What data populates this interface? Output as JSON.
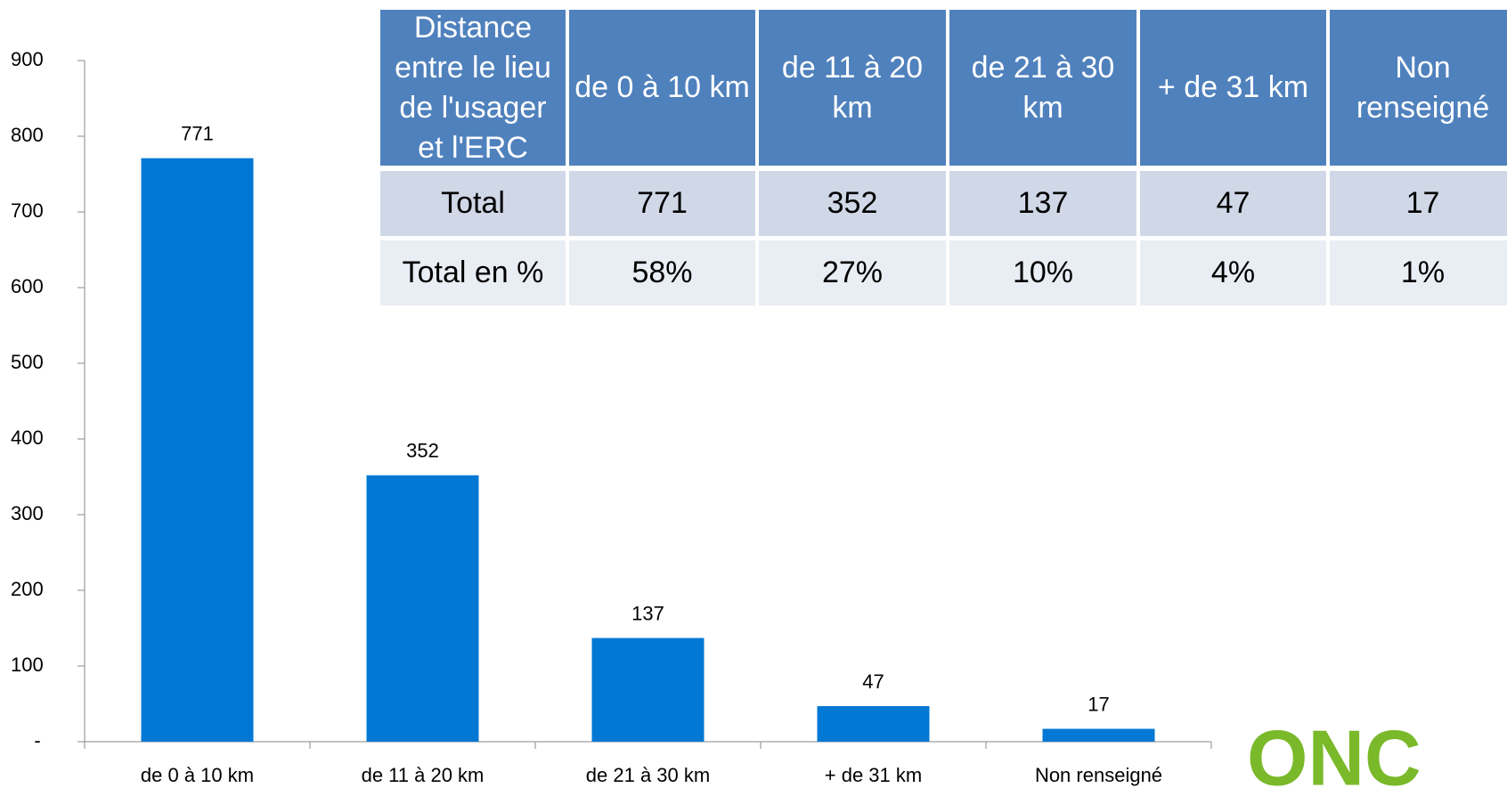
{
  "chart_data": {
    "type": "bar",
    "categories": [
      "de 0 à 10 km",
      "de 11 à 20 km",
      "de 21 à 30 km",
      "+ de 31 km",
      "Non renseigné"
    ],
    "values": [
      771,
      352,
      137,
      47,
      17
    ],
    "color": "#0078d4",
    "ylim": [
      0,
      900
    ],
    "yticks": [
      {
        "value": 0,
        "label": "-"
      },
      100,
      200,
      300,
      400,
      500,
      600,
      700,
      800,
      900
    ],
    "grid": false
  },
  "table": {
    "header": [
      "Distance entre le lieu de l'usager et l'ERC",
      "de 0 à 10 km",
      "de 11 à 20 km",
      "de 21 à 30 km",
      "+ de 31 km",
      "Non renseigné"
    ],
    "rows": [
      [
        "Total",
        "771",
        "352",
        "137",
        "47",
        "17"
      ],
      [
        "Total en %",
        "58%",
        "27%",
        "10%",
        "4%",
        "1%"
      ]
    ]
  },
  "logo": "ONC"
}
